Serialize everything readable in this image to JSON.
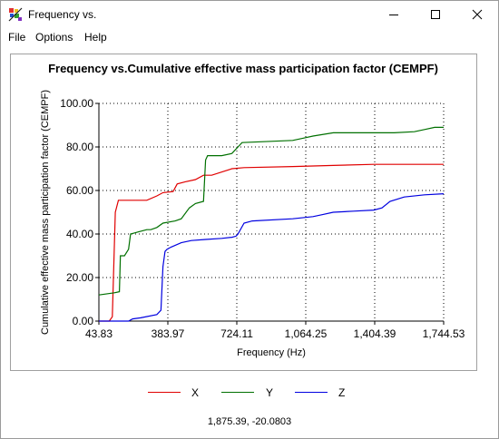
{
  "window": {
    "title": "Frequency vs.",
    "buttons": {
      "minimize": "minimize",
      "maximize": "maximize",
      "close": "close"
    }
  },
  "menu": {
    "items": [
      "File",
      "Options",
      "Help"
    ]
  },
  "chart_data": {
    "type": "line",
    "title": "Frequency vs.Cumulative effective mass participation factor (CEMPF)",
    "xlabel": "Frequency (Hz)",
    "ylabel": "Cumulative effective mass participation factor (CEMPF)",
    "xlim": [
      43.83,
      1744.53
    ],
    "ylim": [
      0,
      100
    ],
    "x_ticks": [
      "43.83",
      "383.97",
      "724.11",
      "1,064.25",
      "1,404.39",
      "1,744.53"
    ],
    "y_ticks": [
      "0.00",
      "20.00",
      "40.00",
      "60.00",
      "80.00",
      "100.00"
    ],
    "grid": true,
    "legend_position": "bottom",
    "colors": {
      "X": "#e00000",
      "Y": "#007000",
      "Z": "#0000e0"
    },
    "series": [
      {
        "name": "X",
        "x": [
          43.83,
          95,
          110,
          125,
          140,
          280,
          330,
          360,
          410,
          430,
          470,
          520,
          560,
          600,
          700,
          760,
          1000,
          1200,
          1400,
          1744.53
        ],
        "y": [
          0,
          0,
          2,
          50,
          55.5,
          55.5,
          57.5,
          59,
          59.5,
          63,
          64,
          65,
          67,
          67,
          70,
          70.5,
          71,
          71.5,
          72,
          72
        ]
      },
      {
        "name": "Y",
        "x": [
          43.83,
          120,
          145,
          150,
          170,
          190,
          200,
          220,
          240,
          280,
          300,
          330,
          360,
          420,
          450,
          490,
          520,
          560,
          570,
          580,
          650,
          700,
          730,
          750,
          1000,
          1050,
          1100,
          1200,
          1300,
          1500,
          1600,
          1650,
          1700,
          1744.53
        ],
        "y": [
          12,
          13,
          13.5,
          30,
          30,
          33,
          40,
          40.5,
          41,
          42,
          42,
          43,
          45,
          46,
          47,
          52,
          54,
          55,
          74,
          76,
          76,
          77,
          80,
          82,
          83,
          84,
          85,
          86.5,
          86.5,
          86.5,
          87,
          88,
          89,
          89
        ]
      },
      {
        "name": "Z",
        "x": [
          43.83,
          150,
          190,
          210,
          250,
          330,
          350,
          360,
          370,
          380,
          400,
          450,
          500,
          570,
          650,
          700,
          720,
          730,
          760,
          800,
          1000,
          1100,
          1150,
          1200,
          1300,
          1400,
          1440,
          1480,
          1550,
          1650,
          1744.53
        ],
        "y": [
          0,
          0,
          0,
          1,
          1.5,
          3,
          5,
          25,
          32,
          33,
          34,
          36,
          37,
          37.5,
          38,
          38.5,
          39,
          40,
          45,
          46,
          47,
          48,
          49,
          50,
          50.5,
          51,
          52,
          55,
          57,
          58,
          58.5
        ]
      }
    ]
  },
  "status": {
    "coordinates": "1,875.39, -20.0803"
  }
}
